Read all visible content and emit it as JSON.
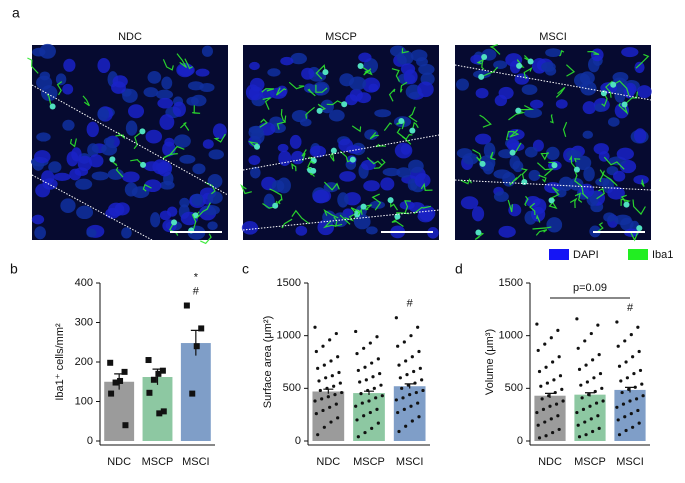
{
  "figure_a": {
    "panel": "a",
    "titles": [
      "NDC",
      "MSCP",
      "MSCI"
    ],
    "legend": [
      {
        "name": "DAPI",
        "color": "#1515f5"
      },
      {
        "name": "Iba1",
        "color": "#22ee22"
      }
    ]
  },
  "chart_data": [
    {
      "panel": "b",
      "type": "bar",
      "ylabel": "Iba1⁺ cells/mm²",
      "categories": [
        "NDC",
        "MSCP",
        "MSCI"
      ],
      "values": [
        150,
        162,
        248
      ],
      "errors": [
        20,
        20,
        32
      ],
      "colors": [
        "#9b9b9b",
        "#8dc8a2",
        "#7f9ec8"
      ],
      "points": [
        [
          198,
          175,
          152,
          148,
          120,
          40
        ],
        [
          205,
          178,
          170,
          155,
          122,
          75,
          70
        ],
        [
          343,
          285,
          240,
          120
        ]
      ],
      "ylim": [
        0,
        400
      ],
      "yticks": [
        0,
        100,
        200,
        300,
        400
      ],
      "annotations": [
        "#",
        "*"
      ]
    },
    {
      "panel": "c",
      "type": "bar",
      "ylabel": "Surface area (μm²)",
      "categories": [
        "NDC",
        "MSCP",
        "MSCI"
      ],
      "values": [
        470,
        455,
        520
      ],
      "errors": [
        22,
        18,
        22
      ],
      "colors": [
        "#9b9b9b",
        "#8dc8a2",
        "#7f9ec8"
      ],
      "points": [
        [
          1080,
          1020,
          960,
          900,
          850,
          800,
          760,
          720,
          690,
          650,
          620,
          600,
          570,
          550,
          520,
          500,
          480,
          460,
          440,
          420,
          400,
          380,
          350,
          320,
          290,
          260,
          220,
          180,
          130,
          60
        ],
        [
          1040,
          990,
          930,
          880,
          830,
          780,
          740,
          700,
          670,
          640,
          610,
          580,
          560,
          530,
          500,
          480,
          450,
          430,
          410,
          380,
          360,
          330,
          300,
          270,
          240,
          200,
          170,
          120,
          80,
          40
        ],
        [
          1170,
          1080,
          1000,
          940,
          900,
          850,
          800,
          760,
          720,
          690,
          660,
          630,
          600,
          580,
          550,
          530,
          500,
          480,
          460,
          440,
          410,
          390,
          360,
          330,
          300,
          270,
          230,
          190,
          140,
          90
        ]
      ],
      "ylim": [
        0,
        1500
      ],
      "yticks": [
        0,
        500,
        1000,
        1500
      ],
      "annotations": [
        "#"
      ]
    },
    {
      "panel": "d",
      "type": "bar",
      "ylabel": "Volume (μm³)",
      "categories": [
        "NDC",
        "MSCP",
        "MSCI"
      ],
      "values": [
        430,
        440,
        485
      ],
      "errors": [
        22,
        18,
        24
      ],
      "colors": [
        "#9b9b9b",
        "#8dc8a2",
        "#7f9ec8"
      ],
      "points": [
        [
          1110,
          1050,
          980,
          920,
          860,
          800,
          750,
          700,
          660,
          620,
          580,
          550,
          520,
          490,
          460,
          430,
          400,
          380,
          350,
          330,
          300,
          270,
          240,
          210,
          180,
          150,
          110,
          80,
          50,
          30
        ],
        [
          1160,
          1100,
          1020,
          950,
          880,
          820,
          770,
          720,
          680,
          640,
          600,
          560,
          530,
          500,
          470,
          440,
          410,
          380,
          360,
          330,
          300,
          270,
          240,
          210,
          180,
          150,
          120,
          90,
          60,
          40
        ],
        [
          1130,
          1080,
          1010,
          950,
          900,
          850,
          800,
          750,
          710,
          670,
          640,
          600,
          570,
          540,
          510,
          490,
          460,
          430,
          400,
          380,
          350,
          320,
          290,
          260,
          230,
          200,
          170,
          130,
          100,
          60
        ]
      ],
      "ylim": [
        0,
        1500
      ],
      "yticks": [
        0,
        500,
        1000,
        1500
      ],
      "annotations": [
        "#"
      ],
      "bracket_label": "p=0.09"
    }
  ]
}
